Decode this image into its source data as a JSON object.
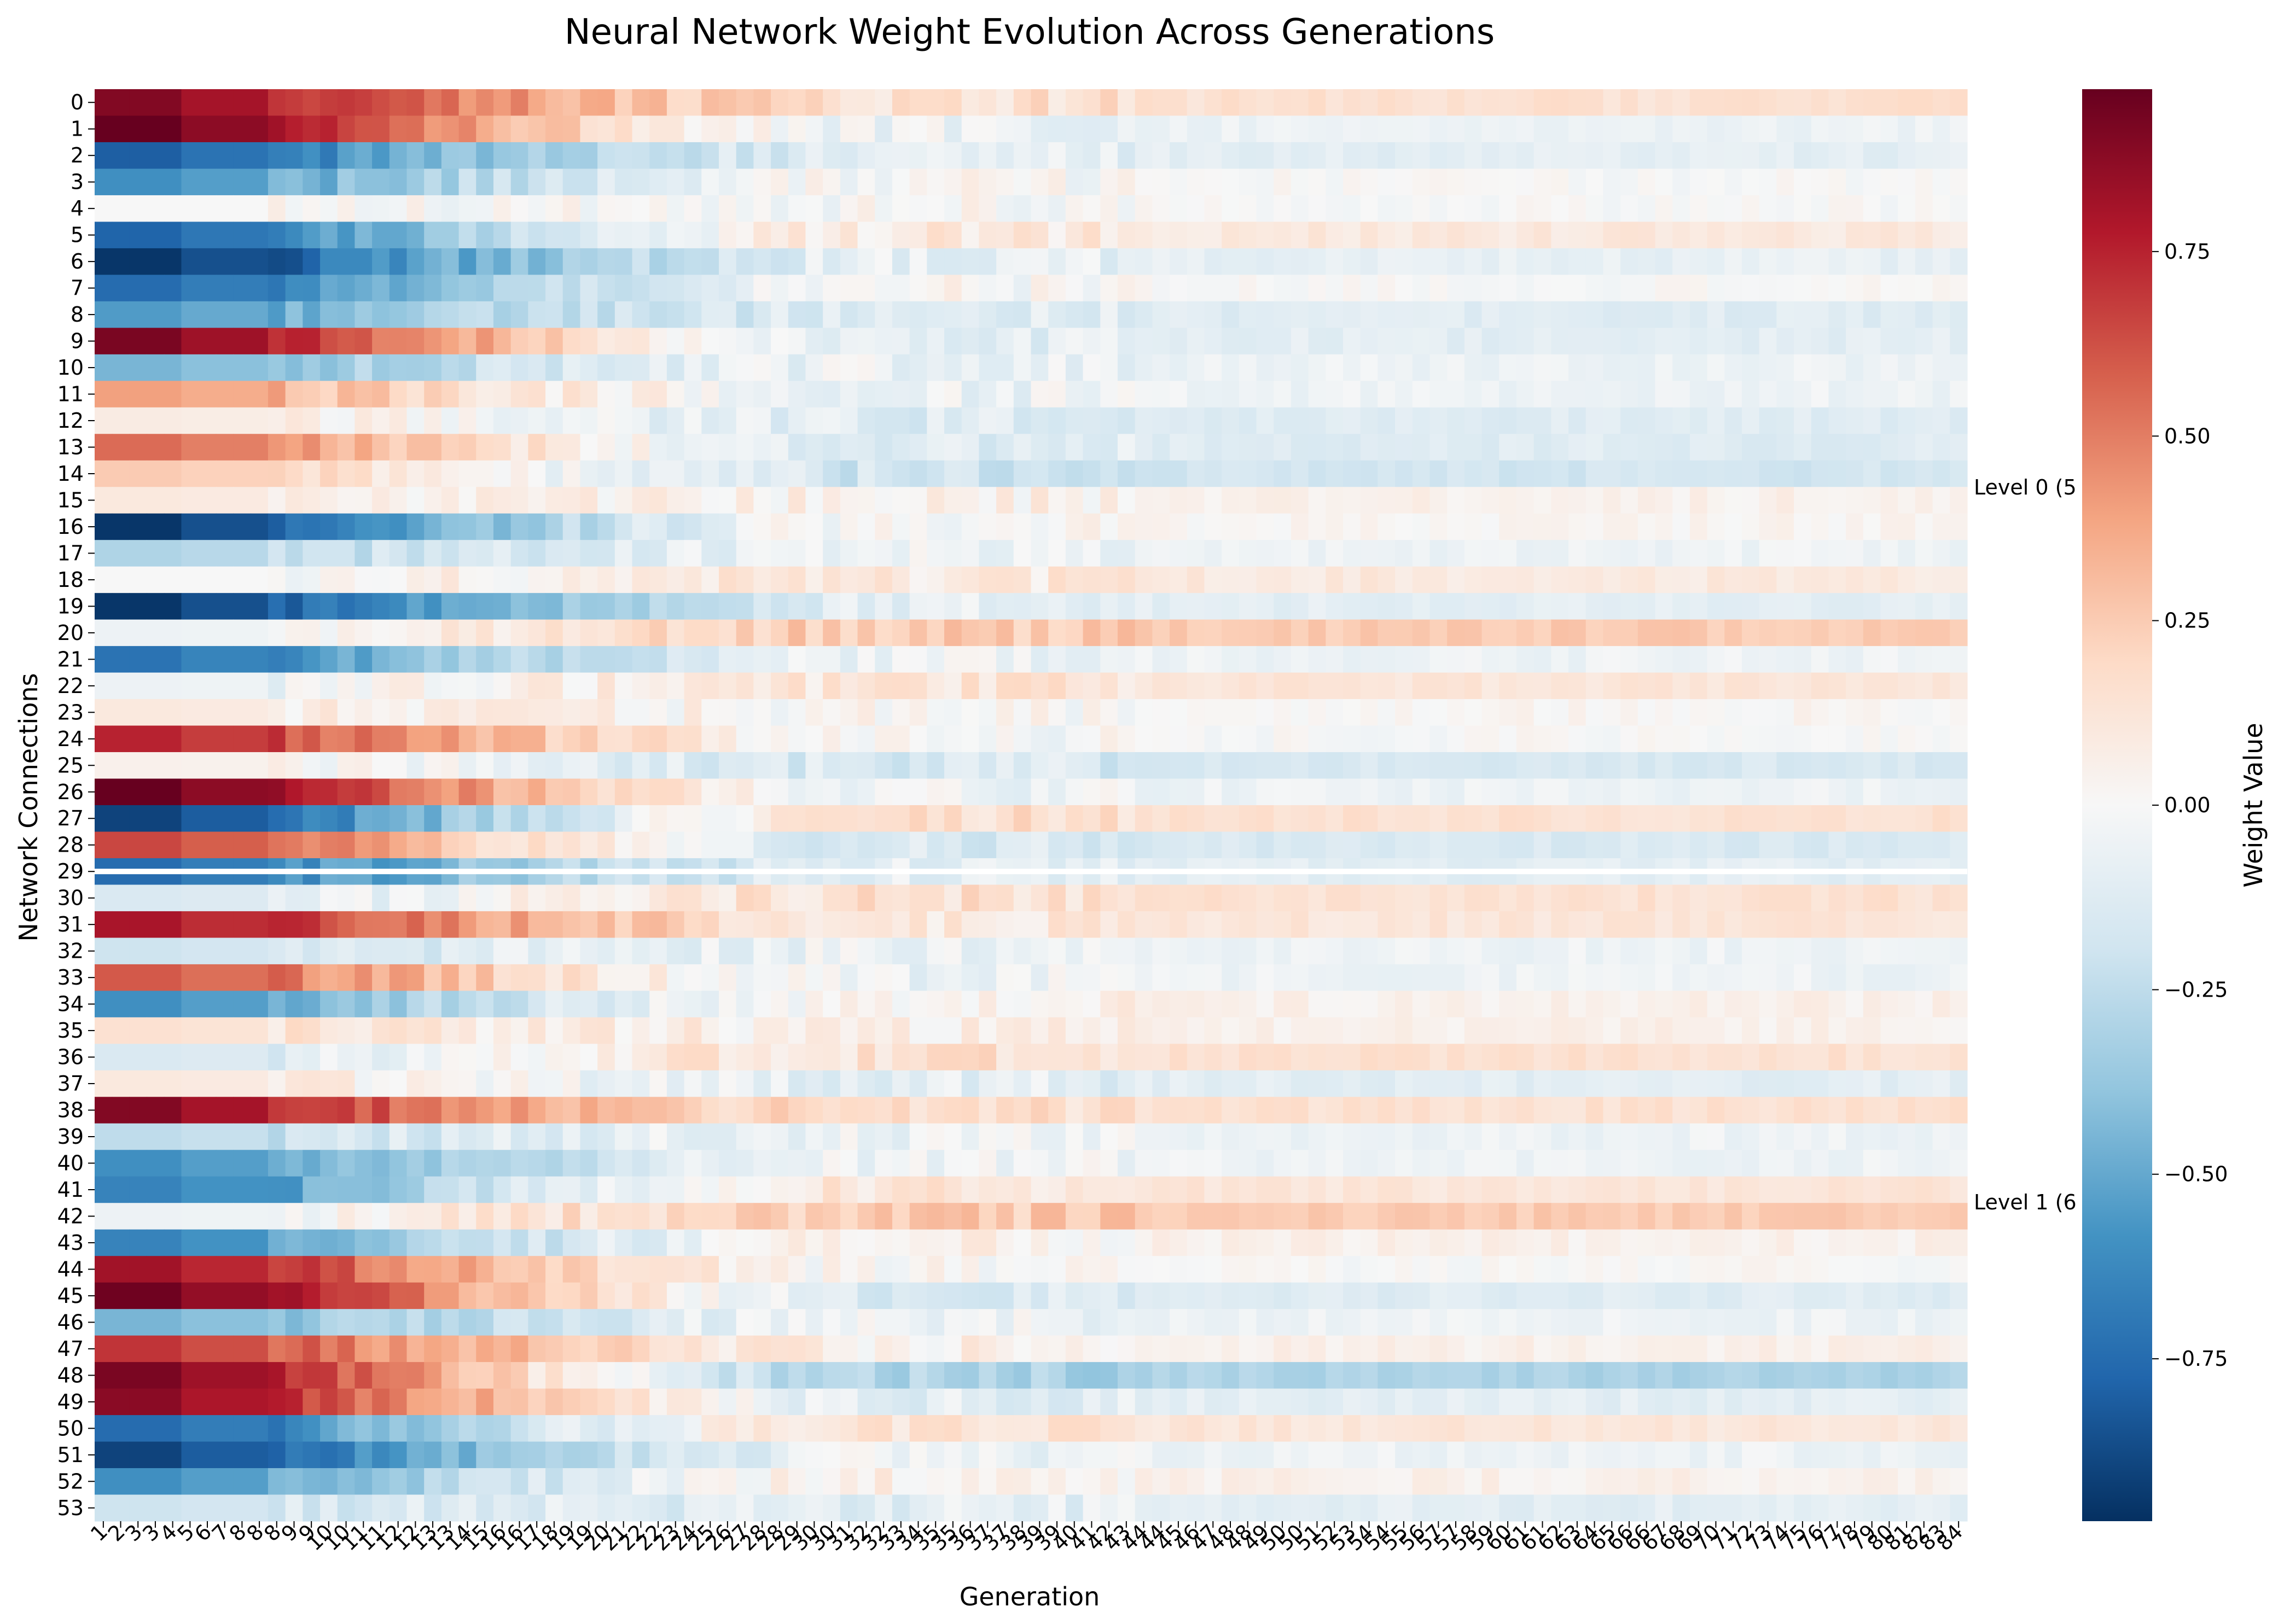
{
  "chart_data": {
    "type": "heatmap",
    "title": "Neural Network Weight Evolution Across Generations",
    "xlabel": "Generation",
    "ylabel": "Network Connections",
    "colorbar_label": "Weight Value",
    "colorbar_range": [
      -0.97,
      0.97
    ],
    "colorbar_ticks": [
      "0.75",
      "0.50",
      "0.25",
      "0.00",
      "−0.25",
      "−0.50",
      "−0.75"
    ],
    "colorbar_tick_values": [
      0.75,
      0.5,
      0.25,
      0.0,
      -0.25,
      -0.5,
      -0.75
    ],
    "colormap": "RdBu_r",
    "rows": [
      "0",
      "1",
      "2",
      "3",
      "4",
      "5",
      "6",
      "7",
      "8",
      "9",
      "10",
      "11",
      "12",
      "13",
      "14",
      "15",
      "16",
      "17",
      "18",
      "19",
      "20",
      "21",
      "22",
      "23",
      "24",
      "25",
      "26",
      "27",
      "28",
      "29",
      "30",
      "31",
      "32",
      "33",
      "34",
      "35",
      "36",
      "37",
      "38",
      "39",
      "40",
      "41",
      "42",
      "43",
      "44",
      "45",
      "46",
      "47",
      "48",
      "49",
      "50",
      "51",
      "52",
      "53"
    ],
    "x_tick_labels": [
      "1",
      "2",
      "3",
      "3",
      "4",
      "5",
      "6",
      "7",
      "8",
      "8",
      "8",
      "9",
      "9",
      "10",
      "10",
      "11",
      "11",
      "12",
      "12",
      "13",
      "13",
      "14",
      "15",
      "16",
      "16",
      "17",
      "18",
      "19",
      "19",
      "20",
      "21",
      "22",
      "22",
      "23",
      "24",
      "25",
      "26",
      "27",
      "28",
      "28",
      "29",
      "30",
      "30",
      "31",
      "32",
      "32",
      "33",
      "34",
      "35",
      "35",
      "36",
      "37",
      "37",
      "38",
      "39",
      "39",
      "40",
      "41",
      "42",
      "43",
      "44",
      "44",
      "45",
      "46",
      "47",
      "48",
      "48",
      "49",
      "50",
      "50",
      "51",
      "52",
      "53",
      "54",
      "54",
      "55",
      "56",
      "57",
      "57",
      "58",
      "59",
      "60",
      "61",
      "61",
      "62",
      "63",
      "64",
      "65",
      "66",
      "66",
      "67",
      "68",
      "69",
      "70",
      "71",
      "72",
      "73",
      "74",
      "75",
      "76",
      "77",
      "78",
      "79",
      "80",
      "81",
      "82",
      "83",
      "84"
    ],
    "separator_after_row": 29,
    "levels": [
      "Level 0 (5",
      "Level 1 (6"
    ],
    "initial_weights": [
      0.9,
      0.97,
      -0.8,
      -0.6,
      0.0,
      -0.78,
      -0.95,
      -0.75,
      -0.55,
      0.92,
      -0.45,
      0.4,
      0.08,
      0.55,
      0.25,
      0.1,
      -0.95,
      -0.3,
      0.0,
      -0.95,
      -0.05,
      -0.72,
      -0.05,
      0.1,
      0.75,
      0.05,
      0.97,
      -0.9,
      0.65,
      -0.75,
      -0.15,
      0.8,
      -0.2,
      0.6,
      -0.6,
      0.15,
      -0.15,
      0.1,
      0.9,
      -0.25,
      -0.6,
      -0.65,
      -0.05,
      -0.65,
      0.82,
      0.95,
      -0.45,
      0.7,
      0.92,
      0.88,
      -0.75,
      -0.9,
      -0.6,
      -0.2
    ],
    "final_weights": [
      0.15,
      -0.05,
      -0.1,
      0.0,
      0.0,
      0.1,
      -0.08,
      0.0,
      -0.12,
      -0.1,
      -0.05,
      -0.05,
      -0.12,
      -0.12,
      -0.18,
      0.05,
      0.02,
      -0.05,
      0.1,
      -0.1,
      0.25,
      -0.05,
      0.12,
      0.02,
      0.0,
      -0.15,
      -0.05,
      0.15,
      -0.15,
      -0.1,
      0.15,
      0.12,
      -0.05,
      -0.05,
      0.05,
      0.05,
      0.15,
      -0.1,
      0.15,
      -0.05,
      -0.05,
      0.12,
      0.25,
      0.05,
      0.0,
      -0.12,
      -0.05,
      0.05,
      -0.3,
      -0.1,
      0.12,
      -0.05,
      0.05,
      -0.1
    ]
  }
}
